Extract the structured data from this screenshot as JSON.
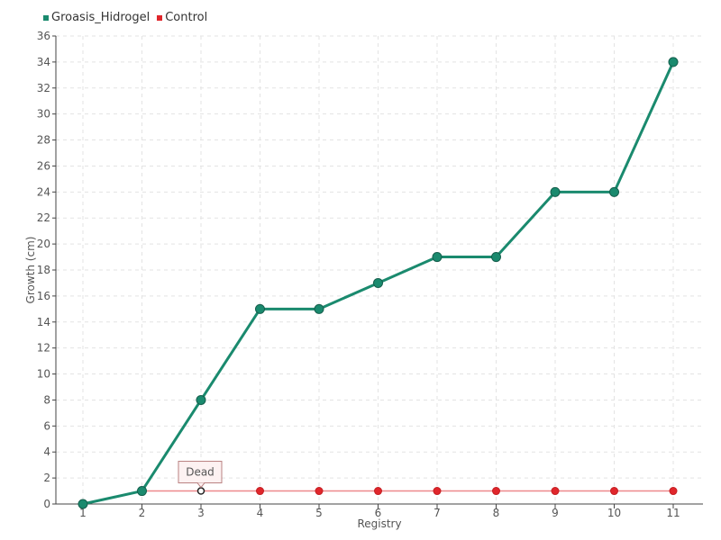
{
  "chart_data": {
    "type": "line",
    "x": [
      "1",
      "2",
      "3",
      "4",
      "5",
      "6",
      "7",
      "8",
      "9",
      "10",
      "11"
    ],
    "xlabel": "Registry",
    "ylabel": "Growth (cm)",
    "ylim": [
      0,
      36
    ],
    "yticks": [
      0,
      2,
      4,
      6,
      8,
      10,
      12,
      14,
      16,
      18,
      20,
      22,
      24,
      26,
      28,
      30,
      32,
      34,
      36
    ],
    "grid": true,
    "legend_position": "top-left",
    "series": [
      {
        "name": "Groasis_Hidrogel",
        "color": "#1a8a6e",
        "values": [
          0,
          1,
          8,
          15,
          15,
          17,
          19,
          19,
          24,
          24,
          34
        ]
      },
      {
        "name": "Control",
        "color": "#e0262b",
        "values": [
          0,
          1,
          1,
          1,
          1,
          1,
          1,
          1,
          1,
          1,
          1
        ]
      }
    ],
    "annotations": [
      {
        "text": "Dead",
        "series": "Control",
        "x": "3",
        "y": 1
      }
    ]
  }
}
